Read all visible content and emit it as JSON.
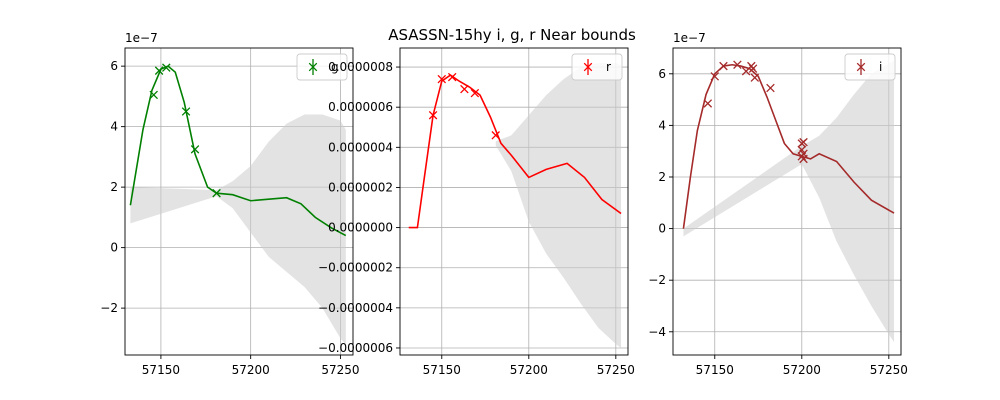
{
  "figure": {
    "title": "ASASSN-15hy  i, g, r Near bounds",
    "background": "#ffffff",
    "grid_color": "#b0b0b0",
    "band_color": "#cccccc"
  },
  "chart_data": [
    {
      "type": "line",
      "series_name": "g",
      "color": "#008000",
      "xlim": [
        57130,
        57257
      ],
      "ylim": [
        -3.55,
        6.6
      ],
      "y_offset_label": "1e−7",
      "xticks": [
        57150,
        57200,
        57250
      ],
      "xtick_labels": [
        "57150",
        "57200",
        "57250"
      ],
      "yticks": [
        -2,
        0,
        2,
        4,
        6
      ],
      "ytick_labels": [
        "−2",
        "0",
        "2",
        "4",
        "6"
      ],
      "grid": true,
      "legend": {
        "location": "upper-right",
        "label": "g"
      },
      "curve": {
        "x": [
          57133,
          57140,
          57145,
          57150,
          57154,
          57158,
          57163,
          57169,
          57176,
          57181,
          57190,
          57195,
          57200,
          57210,
          57220,
          57228,
          57236,
          57245,
          57253
        ],
        "y": [
          1.4,
          3.9,
          5.2,
          5.9,
          6.0,
          5.8,
          4.8,
          3.1,
          2.0,
          1.8,
          1.75,
          1.65,
          1.55,
          1.6,
          1.65,
          1.45,
          1.0,
          0.65,
          0.4
        ]
      },
      "band": {
        "x": [
          57133,
          57181,
          57190,
          57200,
          57210,
          57220,
          57230,
          57240,
          57250,
          57253
        ],
        "upper": [
          2.0,
          1.9,
          2.2,
          2.7,
          3.5,
          4.1,
          4.4,
          4.4,
          4.2,
          3.9
        ],
        "lower": [
          0.8,
          1.7,
          1.3,
          0.5,
          -0.3,
          -0.8,
          -1.3,
          -2.0,
          -3.0,
          -3.2
        ]
      },
      "points": {
        "x": [
          57146,
          57149,
          57153,
          57164,
          57169,
          57181
        ],
        "y": [
          5.05,
          5.85,
          5.95,
          4.5,
          3.25,
          1.8
        ]
      }
    },
    {
      "type": "line",
      "series_name": "r",
      "color": "#ff0000",
      "xlim": [
        57126,
        57257
      ],
      "ylim": [
        -6.35,
        8.95
      ],
      "xticks": [
        57150,
        57200,
        57250
      ],
      "xtick_labels": [
        "57150",
        "57200",
        "57250"
      ],
      "yticks": [
        -6,
        -4,
        -2,
        0,
        2,
        4,
        6,
        8
      ],
      "ytick_labels": [
        "−0.0000006",
        "−0.0000004",
        "−0.0000002",
        "0.0000000",
        "0.0000002",
        "0.0000004",
        "0.0000006",
        "0.0000008"
      ],
      "grid": true,
      "legend": {
        "location": "upper-right",
        "label": "r"
      },
      "curve": {
        "x": [
          57131,
          57136,
          57140,
          57145,
          57150,
          57155,
          57160,
          57166,
          57172,
          57178,
          57184,
          57190,
          57200,
          57210,
          57222,
          57232,
          57242,
          57253
        ],
        "y": [
          0.0,
          0.0,
          2.5,
          5.6,
          7.3,
          7.6,
          7.3,
          7.0,
          6.6,
          5.5,
          4.2,
          3.6,
          2.5,
          2.9,
          3.2,
          2.5,
          1.4,
          0.7
        ]
      },
      "band": {
        "x": [
          57181,
          57190,
          57200,
          57210,
          57220,
          57230,
          57240,
          57250,
          57253
        ],
        "upper": [
          4.3,
          4.6,
          5.6,
          6.6,
          7.4,
          8.0,
          8.2,
          8.2,
          8.1
        ],
        "lower": [
          4.1,
          2.8,
          0.3,
          -1.3,
          -2.5,
          -3.8,
          -5.0,
          -5.8,
          -6.0
        ]
      },
      "points": {
        "x": [
          57145,
          57150,
          57156,
          57163,
          57169,
          57181
        ],
        "y": [
          5.6,
          7.4,
          7.5,
          6.9,
          6.7,
          4.6
        ]
      }
    },
    {
      "type": "line",
      "series_name": "i",
      "color": "#a52a2a",
      "xlim": [
        57126,
        57257
      ],
      "ylim": [
        -4.9,
        7.0
      ],
      "y_offset_label": "1e−7",
      "xticks": [
        57150,
        57200,
        57250
      ],
      "xtick_labels": [
        "57150",
        "57200",
        "57250"
      ],
      "yticks": [
        -4,
        -2,
        0,
        2,
        4,
        6
      ],
      "ytick_labels": [
        "−4",
        "−2",
        "0",
        "2",
        "4",
        "6"
      ],
      "grid": true,
      "legend": {
        "location": "upper-right",
        "label": "i"
      },
      "curve": {
        "x": [
          57132,
          57136,
          57140,
          57145,
          57150,
          57155,
          57160,
          57165,
          57170,
          57175,
          57180,
          57185,
          57190,
          57195,
          57200,
          57205,
          57210,
          57220,
          57230,
          57240,
          57253
        ],
        "y": [
          0.0,
          2.0,
          3.8,
          5.2,
          6.0,
          6.3,
          6.35,
          6.3,
          6.2,
          5.9,
          5.1,
          4.2,
          3.3,
          2.9,
          2.8,
          2.7,
          2.9,
          2.6,
          1.8,
          1.1,
          0.6
        ]
      },
      "band": {
        "x": [
          57132,
          57200,
          57210,
          57220,
          57230,
          57240,
          57250,
          57253
        ],
        "upper": [
          0.0,
          3.2,
          3.6,
          4.3,
          5.2,
          6.0,
          6.4,
          6.5
        ],
        "lower": [
          -0.3,
          2.5,
          1.2,
          -0.5,
          -1.8,
          -3.0,
          -4.1,
          -4.4
        ]
      },
      "points": {
        "x": [
          57146,
          57150,
          57155,
          57163,
          57168,
          57171,
          57172,
          57173,
          57182,
          57200,
          57200,
          57200,
          57201,
          57201,
          57201
        ],
        "y": [
          4.85,
          5.9,
          6.3,
          6.35,
          6.1,
          6.3,
          6.2,
          5.85,
          5.45,
          3.3,
          3.05,
          2.8,
          2.7,
          2.9,
          3.35
        ]
      }
    }
  ]
}
